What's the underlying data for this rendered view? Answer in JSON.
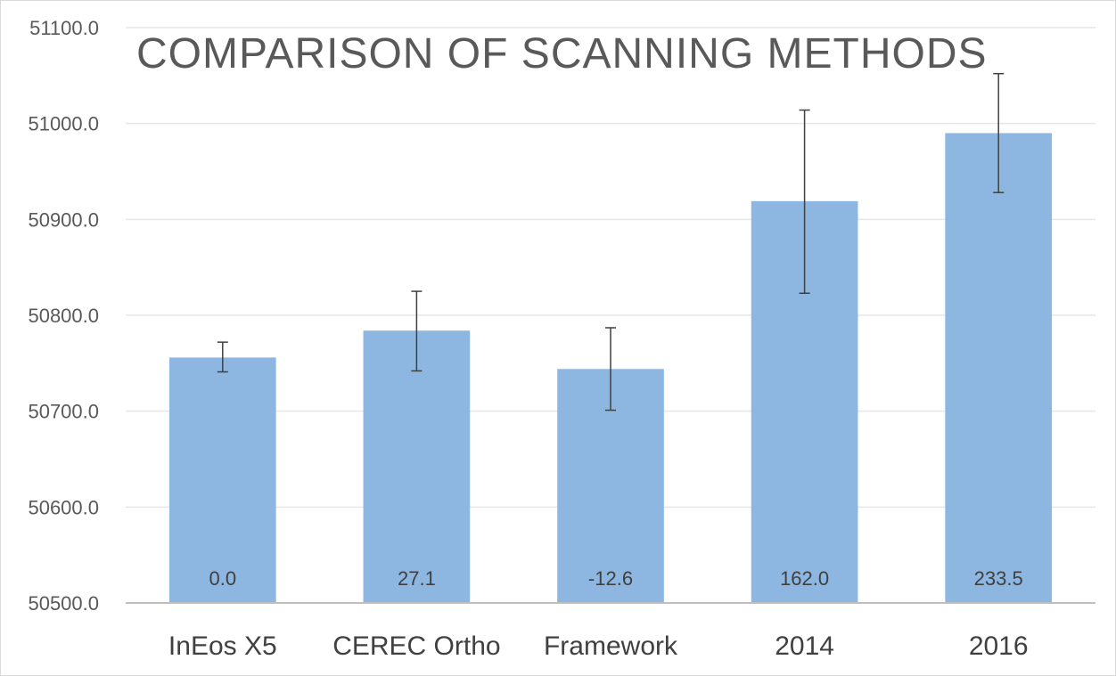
{
  "chart_data": {
    "type": "bar",
    "title": "COMPARISON OF SCANNING METHODS",
    "xlabel": "",
    "ylabel": "",
    "categories": [
      "InEos X5",
      "CEREC Ortho",
      "Framework",
      "2014",
      "2016"
    ],
    "values": [
      50756.0,
      50784.0,
      50744.0,
      50919.0,
      50990.0
    ],
    "error_high": [
      50772.0,
      50825.0,
      50787.0,
      51014.0,
      51052.0
    ],
    "error_low": [
      50741.0,
      50742.0,
      50701.0,
      50823.0,
      50928.0
    ],
    "data_labels": [
      "0.0",
      "27.1",
      "-12.6",
      "162.0",
      "233.5"
    ],
    "ylim": [
      50500.0,
      51100.0
    ],
    "yticks": [
      "50500.0",
      "50600.0",
      "50700.0",
      "50800.0",
      "50900.0",
      "51000.0",
      "51100.0"
    ],
    "ytick_values": [
      50500,
      50600,
      50700,
      50800,
      50900,
      51000,
      51100
    ],
    "grid": true,
    "legend": "none",
    "colors": {
      "bar": "#8db6e0",
      "gridline": "#e6e6e6",
      "axis": "#bfbfbf",
      "error_bar": "#404040"
    }
  }
}
